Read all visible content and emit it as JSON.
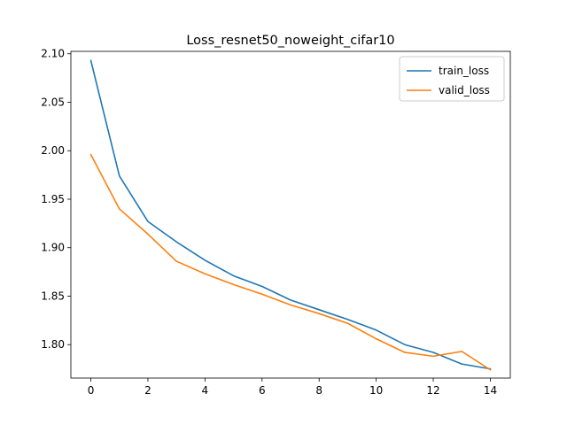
{
  "chart_data": {
    "type": "line",
    "title": "Loss_resnet50_noweight_cifar10",
    "xlabel": "",
    "ylabel": "",
    "x": [
      0,
      1,
      2,
      3,
      4,
      5,
      6,
      7,
      8,
      9,
      10,
      11,
      12,
      13,
      14
    ],
    "series": [
      {
        "name": "train_loss",
        "color": "#1f77b4",
        "values": [
          2.093,
          1.974,
          1.927,
          1.906,
          1.887,
          1.871,
          1.86,
          1.846,
          1.836,
          1.826,
          1.815,
          1.8,
          1.792,
          1.78,
          1.775
        ]
      },
      {
        "name": "valid_loss",
        "color": "#ff7f0e",
        "values": [
          1.996,
          1.94,
          1.914,
          1.886,
          1.873,
          1.862,
          1.852,
          1.841,
          1.832,
          1.822,
          1.806,
          1.792,
          1.788,
          1.793,
          1.774
        ]
      }
    ],
    "xticks": [
      0,
      2,
      4,
      6,
      8,
      10,
      12,
      14
    ],
    "yticks": [
      "1.80",
      "1.85",
      "1.90",
      "1.95",
      "2.00",
      "2.05",
      "2.10"
    ],
    "xlim": [
      -0.7,
      14.7
    ],
    "ylim": [
      1.7655,
      2.1025
    ],
    "grid": false,
    "legend": "top-right"
  }
}
